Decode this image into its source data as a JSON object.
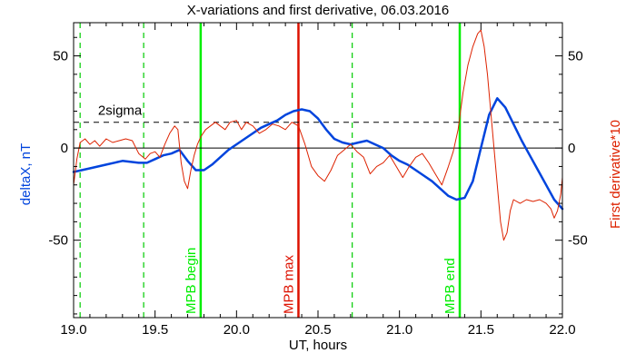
{
  "chart_data": {
    "type": "line",
    "title": "X-variations and first derivative, 06.03.2016",
    "xlabel": "UT, hours",
    "ylabel_left": "deltaX, nT",
    "ylabel_right": "First derivative*10",
    "xlim": [
      19.0,
      22.0
    ],
    "ylim": [
      -92,
      68
    ],
    "x_ticks": [
      19.0,
      19.5,
      20.0,
      20.5,
      21.0,
      21.5,
      22.0
    ],
    "x_tick_labels": [
      "19.0",
      "19.5",
      "20.0",
      "20.5",
      "21.0",
      "21.5",
      "22.0"
    ],
    "y_ticks": [
      -50,
      0,
      50
    ],
    "y_tick_labels": [
      "-50",
      "0",
      "50"
    ],
    "grid": false,
    "threshold": {
      "label": "2sigma",
      "y": 14,
      "style": "dashed",
      "color": "#000000"
    },
    "zero_line": {
      "y": 0,
      "color": "#000000"
    },
    "vertical_markers": [
      {
        "x": 19.04,
        "style": "dashed",
        "color": "#00cc00",
        "label": ""
      },
      {
        "x": 19.43,
        "style": "dashed",
        "color": "#00cc00",
        "label": ""
      },
      {
        "x": 19.78,
        "style": "solid",
        "color": "#00ee00",
        "label": "MPB begin"
      },
      {
        "x": 20.38,
        "style": "solid",
        "color": "#dd1100",
        "label": "MPB max"
      },
      {
        "x": 20.71,
        "style": "dashed",
        "color": "#00cc00",
        "label": ""
      },
      {
        "x": 21.37,
        "style": "solid",
        "color": "#00ee00",
        "label": "MPB end"
      }
    ],
    "series": [
      {
        "name": "deltaX",
        "color": "#0044dd",
        "axis": "left",
        "x": [
          19.0,
          19.1,
          19.2,
          19.3,
          19.4,
          19.45,
          19.5,
          19.55,
          19.6,
          19.65,
          19.7,
          19.75,
          19.8,
          19.85,
          19.9,
          19.95,
          20.0,
          20.05,
          20.1,
          20.15,
          20.2,
          20.25,
          20.3,
          20.35,
          20.4,
          20.45,
          20.5,
          20.55,
          20.6,
          20.65,
          20.7,
          20.75,
          20.8,
          20.85,
          20.9,
          20.95,
          21.0,
          21.05,
          21.1,
          21.15,
          21.2,
          21.25,
          21.3,
          21.35,
          21.4,
          21.45,
          21.5,
          21.55,
          21.6,
          21.65,
          21.7,
          21.75,
          21.8,
          21.85,
          21.9,
          21.95,
          22.0
        ],
        "y": [
          -13,
          -11,
          -9,
          -7,
          -8,
          -8,
          -6,
          -4,
          -3,
          -1,
          -7,
          -12,
          -12,
          -9,
          -5,
          -1,
          2,
          5,
          8,
          11,
          13,
          15,
          18,
          20,
          21,
          20,
          16,
          10,
          5,
          3,
          2,
          3,
          4,
          2,
          0,
          -4,
          -7,
          -9,
          -12,
          -15,
          -18,
          -22,
          -26,
          -28,
          -27,
          -18,
          0,
          18,
          27,
          22,
          13,
          4,
          -4,
          -12,
          -20,
          -28,
          -33
        ]
      },
      {
        "name": "First derivative*10",
        "color": "#dd2200",
        "axis": "right",
        "x": [
          19.0,
          19.02,
          19.04,
          19.07,
          19.1,
          19.13,
          19.16,
          19.2,
          19.24,
          19.28,
          19.32,
          19.36,
          19.4,
          19.44,
          19.47,
          19.5,
          19.53,
          19.56,
          19.59,
          19.62,
          19.64,
          19.66,
          19.68,
          19.7,
          19.72,
          19.74,
          19.76,
          19.78,
          19.81,
          19.84,
          19.87,
          19.9,
          19.93,
          19.96,
          20.0,
          20.03,
          20.06,
          20.1,
          20.14,
          20.18,
          20.22,
          20.26,
          20.3,
          20.34,
          20.38,
          20.42,
          20.46,
          20.5,
          20.54,
          20.58,
          20.62,
          20.66,
          20.7,
          20.74,
          20.78,
          20.82,
          20.86,
          20.9,
          20.94,
          20.98,
          21.02,
          21.06,
          21.1,
          21.14,
          21.18,
          21.22,
          21.26,
          21.3,
          21.33,
          21.36,
          21.39,
          21.42,
          21.45,
          21.48,
          21.5,
          21.52,
          21.54,
          21.56,
          21.58,
          21.6,
          21.62,
          21.64,
          21.66,
          21.68,
          21.7,
          21.74,
          21.78,
          21.82,
          21.86,
          21.9,
          21.93,
          21.95,
          21.97,
          21.99,
          22.0
        ],
        "y": [
          -20,
          -6,
          3,
          5,
          2,
          4,
          1,
          5,
          3,
          4,
          5,
          4,
          -3,
          -6,
          -3,
          -2,
          -5,
          2,
          8,
          12,
          10,
          -8,
          -18,
          -22,
          -12,
          -4,
          2,
          6,
          10,
          12,
          14,
          12,
          10,
          14,
          15,
          10,
          14,
          12,
          8,
          10,
          13,
          12,
          10,
          14,
          12,
          2,
          -10,
          -15,
          -18,
          -12,
          -4,
          -1,
          2,
          -2,
          -5,
          -14,
          -10,
          -8,
          -4,
          -10,
          -16,
          -10,
          -5,
          -3,
          -8,
          -14,
          -20,
          -10,
          -2,
          10,
          30,
          45,
          55,
          62,
          64,
          55,
          40,
          20,
          0,
          -20,
          -40,
          -50,
          -46,
          -34,
          -28,
          -30,
          -28,
          -29,
          -28,
          -30,
          -33,
          -38,
          -34,
          -25,
          -16
        ]
      }
    ]
  }
}
